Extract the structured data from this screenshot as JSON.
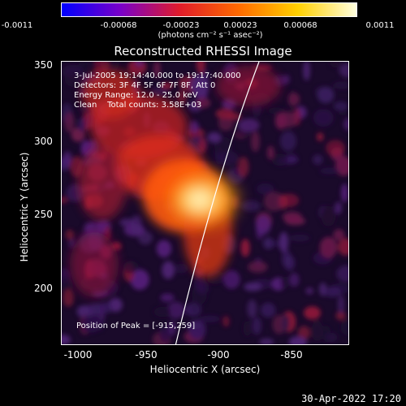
{
  "colorbar": {
    "ticks": [
      "-0.0011",
      "-0.00068",
      "-0.00023",
      "0.00023",
      "0.00068",
      "0.0011"
    ],
    "units": "(photons cm⁻² s⁻¹ asec⁻²)",
    "colors": [
      "#0000ff",
      "#7a00c8",
      "#e01c2a",
      "#ff6a00",
      "#ffd000",
      "#ffffe0"
    ]
  },
  "title": "Reconstructed RHESSI Image",
  "annotations": {
    "time": "3-Jul-2005 19:14:40.000 to 19:17:40.000",
    "detectors": "Detectors: 3F 4F 5F 6F 7F 8F, Att 0",
    "energy": "Energy Range: 12.0 - 25.0 keV",
    "clean": "Clean    Total counts: 3.58E+03",
    "peak": "Position of Peak = [-915,259]"
  },
  "axes": {
    "x_label": "Heliocentric X (arcsec)",
    "y_label": "Heliocentric Y (arcsec)",
    "x_ticks": [
      "-1000",
      "-950",
      "-900",
      "-850"
    ],
    "y_ticks": [
      "350",
      "300",
      "250",
      "200"
    ],
    "x_range": [
      -1013,
      -817
    ],
    "y_range": [
      157,
      356
    ]
  },
  "footer": {
    "timestamp": "30-Apr-2022 17:20"
  }
}
